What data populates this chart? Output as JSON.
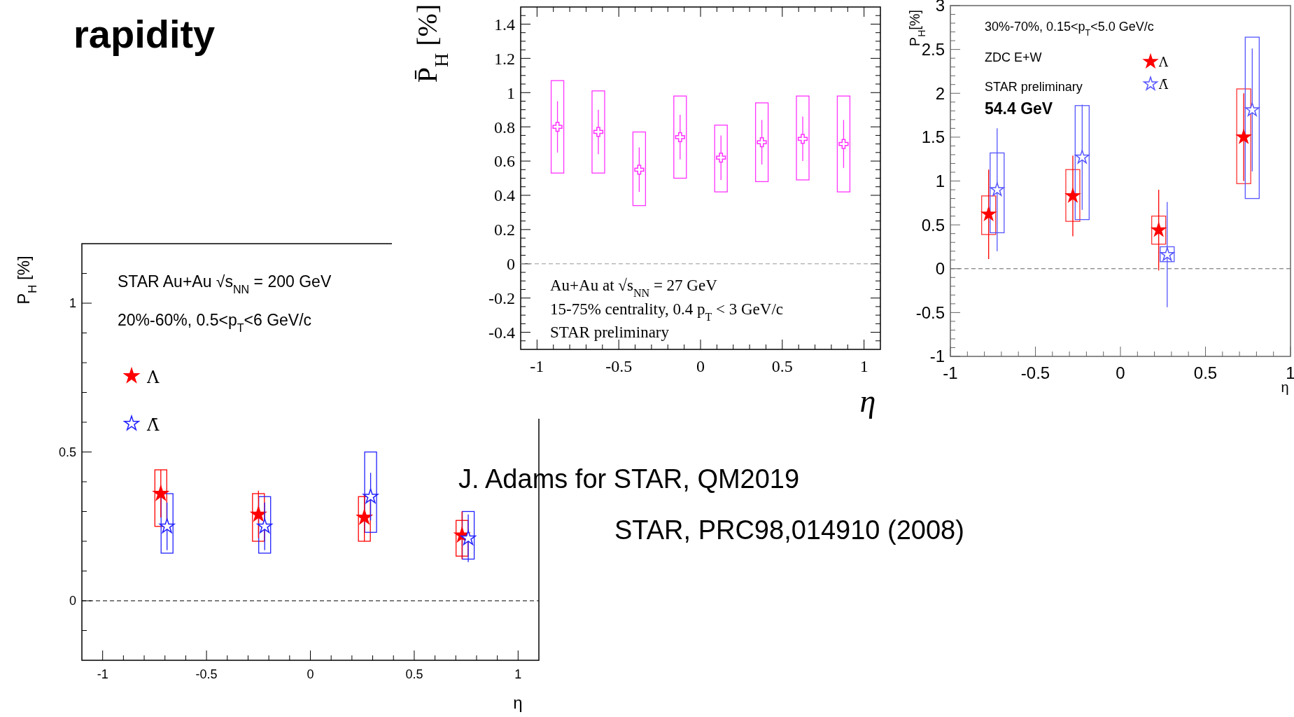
{
  "chart_data": [
    {
      "type": "scatter",
      "title": "rapidity",
      "xlabel": "η",
      "ylabel": "P$_{H}$ [%]",
      "xlim": [
        -1.1,
        1.1
      ],
      "ylim": [
        -0.2,
        1.2
      ],
      "xticks": [
        -1,
        {
          "value": -0.9,
          "label": null
        },
        {
          "value": -0.8,
          "label": null
        },
        {
          "value": -0.7,
          "label": null
        },
        {
          "value": -0.6,
          "label": null
        },
        -0.5,
        {
          "value": -0.4,
          "label": null
        },
        {
          "value": -0.3,
          "label": null
        },
        {
          "value": -0.2,
          "label": null
        },
        {
          "value": -0.1,
          "label": null
        },
        0,
        {
          "value": 0.1,
          "label": null
        },
        {
          "value": 0.2,
          "label": null
        },
        {
          "value": 0.3,
          "label": null
        },
        {
          "value": 0.4,
          "label": null
        },
        0.5,
        {
          "value": 0.6,
          "label": null
        },
        {
          "value": 0.7,
          "label": null
        },
        {
          "value": 0.8,
          "label": null
        },
        {
          "value": 0.9,
          "label": null
        },
        1
      ],
      "yticks": [
        {
          "value": -0.1,
          "label": null
        },
        0,
        {
          "value": 0.1,
          "label": null
        },
        {
          "value": 0.2,
          "label": null
        },
        {
          "value": 0.3,
          "label": null
        },
        {
          "value": 0.4,
          "label": null
        },
        0.5,
        {
          "value": 0.6,
          "label": null
        },
        {
          "value": 0.7,
          "label": null
        },
        {
          "value": 0.8,
          "label": null
        },
        {
          "value": 0.9,
          "label": null
        },
        1,
        {
          "value": 1.1,
          "label": null
        }
      ],
      "ref_lines": [
        {
          "axis": "y",
          "value": 0,
          "color": "#000000",
          "line_style": "dashed"
        }
      ],
      "legend": "left",
      "annotations": [
        "STAR Au+Au √s$_{NN}$ = 200 GeV",
        "20%-60%, 0.5<p$_{T}$<6 GeV/c",
        "J. Adams for STAR, QM2019",
        "STAR, PRC98,014910 (2008)"
      ],
      "series": [
        {
          "type": "bar",
          "color": "#ff0000",
          "x": [
            -0.72,
            -0.25,
            0.26,
            0.73
          ],
          "base": [
            0.25,
            0.2,
            0.2,
            0.15
          ],
          "values": [
            0.19,
            0.16,
            0.15,
            0.12
          ]
        },
        {
          "type": "bar",
          "color": "#2222ff",
          "x": [
            -0.69,
            -0.22,
            0.29,
            0.76
          ],
          "base": [
            0.16,
            0.16,
            0.23,
            0.14
          ],
          "values": [
            0.2,
            0.19,
            0.27,
            0.16
          ]
        },
        {
          "name": "Λ",
          "color": "#ff0000",
          "marker": "star",
          "x": [
            -0.72,
            -0.25,
            0.26,
            0.73
          ],
          "values": [
            0.36,
            0.29,
            0.28,
            0.22
          ],
          "errors": [
            0.08,
            0.08,
            0.08,
            0.08
          ]
        },
        {
          "name": "Λ̄",
          "color": "#2222ff",
          "marker": "star",
          "x": [
            -0.69,
            -0.22,
            0.29,
            0.76
          ],
          "values": [
            0.25,
            0.25,
            0.35,
            0.21
          ],
          "errors": [
            0.08,
            0.08,
            0.08,
            0.08
          ]
        }
      ]
    },
    {
      "type": "scatter",
      "xlabel": "η",
      "ylabel": "P̄$_{H}$ [%]",
      "xlim": [
        -1.1,
        1.1
      ],
      "ylim": [
        -0.5,
        1.5
      ],
      "xticks": [
        -1,
        {
          "value": -0.9,
          "label": null
        },
        {
          "value": -0.8,
          "label": null
        },
        {
          "value": -0.7,
          "label": null
        },
        {
          "value": -0.6,
          "label": null
        },
        -0.5,
        {
          "value": -0.4,
          "label": null
        },
        {
          "value": -0.3,
          "label": null
        },
        {
          "value": -0.2,
          "label": null
        },
        {
          "value": -0.1,
          "label": null
        },
        0,
        {
          "value": 0.1,
          "label": null
        },
        {
          "value": 0.2,
          "label": null
        },
        {
          "value": 0.3,
          "label": null
        },
        {
          "value": 0.4,
          "label": null
        },
        0.5,
        {
          "value": 0.6,
          "label": null
        },
        {
          "value": 0.7,
          "label": null
        },
        {
          "value": 0.8,
          "label": null
        },
        {
          "value": 0.9,
          "label": null
        },
        1
      ],
      "yticks": [
        {
          "value": -0.45,
          "label": null
        },
        -0.4,
        {
          "value": -0.35,
          "label": null
        },
        {
          "value": -0.3,
          "label": null
        },
        {
          "value": -0.25,
          "label": null
        },
        -0.2,
        {
          "value": -0.15,
          "label": null
        },
        {
          "value": -0.1,
          "label": null
        },
        {
          "value": -0.05,
          "label": null
        },
        0,
        {
          "value": 0.05,
          "label": null
        },
        {
          "value": 0.1,
          "label": null
        },
        {
          "value": 0.15,
          "label": null
        },
        0.2,
        {
          "value": 0.25,
          "label": null
        },
        {
          "value": 0.3,
          "label": null
        },
        {
          "value": 0.35,
          "label": null
        },
        0.4,
        {
          "value": 0.45,
          "label": null
        },
        {
          "value": 0.5,
          "label": null
        },
        {
          "value": 0.55,
          "label": null
        },
        0.6,
        {
          "value": 0.65,
          "label": null
        },
        {
          "value": 0.7,
          "label": null
        },
        {
          "value": 0.75,
          "label": null
        },
        0.8,
        {
          "value": 0.85,
          "label": null
        },
        {
          "value": 0.9,
          "label": null
        },
        {
          "value": 0.95,
          "label": null
        },
        1,
        {
          "value": 1.05,
          "label": null
        },
        {
          "value": 1.1,
          "label": null
        },
        {
          "value": 1.15,
          "label": null
        },
        1.2,
        {
          "value": 1.25,
          "label": null
        },
        {
          "value": 1.3,
          "label": null
        },
        {
          "value": 1.35,
          "label": null
        },
        1.4,
        {
          "value": 1.45,
          "label": null
        }
      ],
      "ref_lines": [
        {
          "axis": "y",
          "value": 0,
          "color": "#999999",
          "line_style": "dashed"
        }
      ],
      "annotations": [
        "Au+Au at √s$_{NN}$ = 27 GeV",
        "15-75% centrality, 0.4 p$_{T}$ < 3 GeV/c",
        "STAR preliminary"
      ],
      "series": [
        {
          "type": "bar",
          "color": "#ff33ff",
          "x": [
            -0.875,
            -0.625,
            -0.375,
            -0.125,
            0.125,
            0.375,
            0.625,
            0.875
          ],
          "base": [
            0.53,
            0.53,
            0.34,
            0.5,
            0.42,
            0.48,
            0.49,
            0.42
          ],
          "values": [
            0.54,
            0.48,
            0.43,
            0.48,
            0.39,
            0.46,
            0.49,
            0.56
          ]
        },
        {
          "color": "#ff33ff",
          "marker": "cross",
          "x": [
            -0.875,
            -0.625,
            -0.375,
            -0.125,
            0.125,
            0.375,
            0.625,
            0.875
          ],
          "values": [
            0.8,
            0.77,
            0.55,
            0.74,
            0.62,
            0.71,
            0.73,
            0.7
          ],
          "errors": [
            0.15,
            0.13,
            0.13,
            0.13,
            0.13,
            0.13,
            0.13,
            0.14
          ]
        }
      ]
    },
    {
      "type": "scatter",
      "xlabel": "η",
      "ylabel": "P$_{H}$[%]",
      "xlim": [
        -1,
        1
      ],
      "ylim": [
        -1,
        3
      ],
      "xticks": [
        -1,
        {
          "value": -0.9,
          "label": null
        },
        {
          "value": -0.8,
          "label": null
        },
        {
          "value": -0.7,
          "label": null
        },
        {
          "value": -0.6,
          "label": null
        },
        -0.5,
        {
          "value": -0.4,
          "label": null
        },
        {
          "value": -0.3,
          "label": null
        },
        {
          "value": -0.2,
          "label": null
        },
        {
          "value": -0.1,
          "label": null
        },
        0,
        {
          "value": 0.1,
          "label": null
        },
        {
          "value": 0.2,
          "label": null
        },
        {
          "value": 0.3,
          "label": null
        },
        {
          "value": 0.4,
          "label": null
        },
        0.5,
        {
          "value": 0.6,
          "label": null
        },
        {
          "value": 0.7,
          "label": null
        },
        {
          "value": 0.8,
          "label": null
        },
        {
          "value": 0.9,
          "label": null
        },
        1
      ],
      "yticks": [
        -1,
        {
          "value": -0.9,
          "label": null
        },
        {
          "value": -0.8,
          "label": null
        },
        {
          "value": -0.7,
          "label": null
        },
        {
          "value": -0.6,
          "label": null
        },
        -0.5,
        {
          "value": -0.4,
          "label": null
        },
        {
          "value": -0.3,
          "label": null
        },
        {
          "value": -0.2,
          "label": null
        },
        {
          "value": -0.1,
          "label": null
        },
        0,
        {
          "value": 0.1,
          "label": null
        },
        {
          "value": 0.2,
          "label": null
        },
        {
          "value": 0.3,
          "label": null
        },
        {
          "value": 0.4,
          "label": null
        },
        0.5,
        {
          "value": 0.6,
          "label": null
        },
        {
          "value": 0.7,
          "label": null
        },
        {
          "value": 0.8,
          "label": null
        },
        {
          "value": 0.9,
          "label": null
        },
        1,
        {
          "value": 1.1,
          "label": null
        },
        {
          "value": 1.2,
          "label": null
        },
        {
          "value": 1.3,
          "label": null
        },
        {
          "value": 1.4,
          "label": null
        },
        1.5,
        {
          "value": 1.6,
          "label": null
        },
        {
          "value": 1.7,
          "label": null
        },
        {
          "value": 1.8,
          "label": null
        },
        {
          "value": 1.9,
          "label": null
        },
        2,
        {
          "value": 2.1,
          "label": null
        },
        {
          "value": 2.2,
          "label": null
        },
        {
          "value": 2.3,
          "label": null
        },
        {
          "value": 2.4,
          "label": null
        },
        2.5,
        {
          "value": 2.6,
          "label": null
        },
        {
          "value": 2.7,
          "label": null
        },
        {
          "value": 2.8,
          "label": null
        },
        {
          "value": 2.9,
          "label": null
        },
        3
      ],
      "ref_lines": [
        {
          "axis": "y",
          "value": 0,
          "color": "#666666",
          "line_style": "dashed"
        }
      ],
      "legend": "top",
      "annotations": [
        "30%-70%, 0.15<p$_{T}$<5.0 GeV/c",
        "ZDC E+W",
        "STAR preliminary",
        "54.4 GeV"
      ],
      "series": [
        {
          "type": "bar",
          "color": "#ff3333",
          "x": [
            -0.775,
            -0.28,
            0.225,
            0.725
          ],
          "base": [
            0.39,
            0.54,
            0.28,
            0.97
          ],
          "values": [
            0.44,
            0.59,
            0.32,
            1.08
          ]
        },
        {
          "type": "bar",
          "color": "#5555ff",
          "x": [
            -0.725,
            -0.225,
            0.275,
            0.775
          ],
          "base": [
            0.41,
            0.56,
            0.08,
            0.8
          ],
          "values": [
            0.91,
            1.3,
            0.17,
            1.84
          ]
        },
        {
          "name": "Λ",
          "color": "#ff0000",
          "marker": "star",
          "x": [
            -0.775,
            -0.28,
            0.225,
            0.725
          ],
          "values": [
            0.62,
            0.83,
            0.44,
            1.5
          ],
          "errors": [
            0.51,
            0.46,
            0.46,
            0.5
          ]
        },
        {
          "name": "Λ̄",
          "color": "#5555ff",
          "marker": "star",
          "x": [
            -0.725,
            -0.225,
            0.275,
            0.775
          ],
          "values": [
            0.9,
            1.27,
            0.16,
            1.81
          ],
          "errors": [
            0.7,
            0.6,
            0.6,
            0.7
          ]
        }
      ]
    }
  ]
}
